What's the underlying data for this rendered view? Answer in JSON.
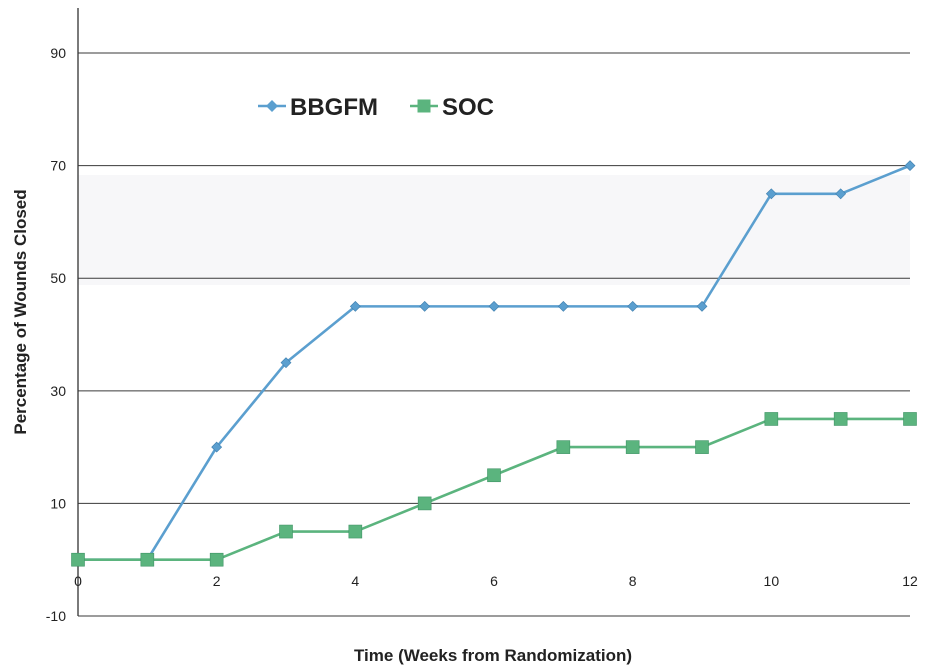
{
  "chart_data": {
    "type": "line",
    "title": "",
    "xlabel": "Time (Weeks from Randomization)",
    "ylabel": "Percentage of Wounds Closed",
    "x": [
      0,
      1,
      2,
      3,
      4,
      5,
      6,
      7,
      8,
      9,
      10,
      11,
      12
    ],
    "xlim": [
      0,
      12
    ],
    "ylim": [
      -10,
      98
    ],
    "xticks": [
      0,
      2,
      4,
      6,
      8,
      10,
      12
    ],
    "yticks": [
      -10,
      10,
      30,
      50,
      70,
      90
    ],
    "grid": "horizontal",
    "legend": "top-left",
    "series": [
      {
        "name": "BBGFM",
        "color": "#5b9fcf",
        "marker": "diamond",
        "values": [
          0,
          0,
          20,
          35,
          45,
          45,
          45,
          45,
          45,
          45,
          65,
          65,
          70
        ]
      },
      {
        "name": "SOC",
        "color": "#5bb47e",
        "marker": "square",
        "values": [
          0,
          0,
          0,
          5,
          5,
          10,
          15,
          20,
          20,
          20,
          25,
          25,
          25
        ]
      }
    ]
  }
}
